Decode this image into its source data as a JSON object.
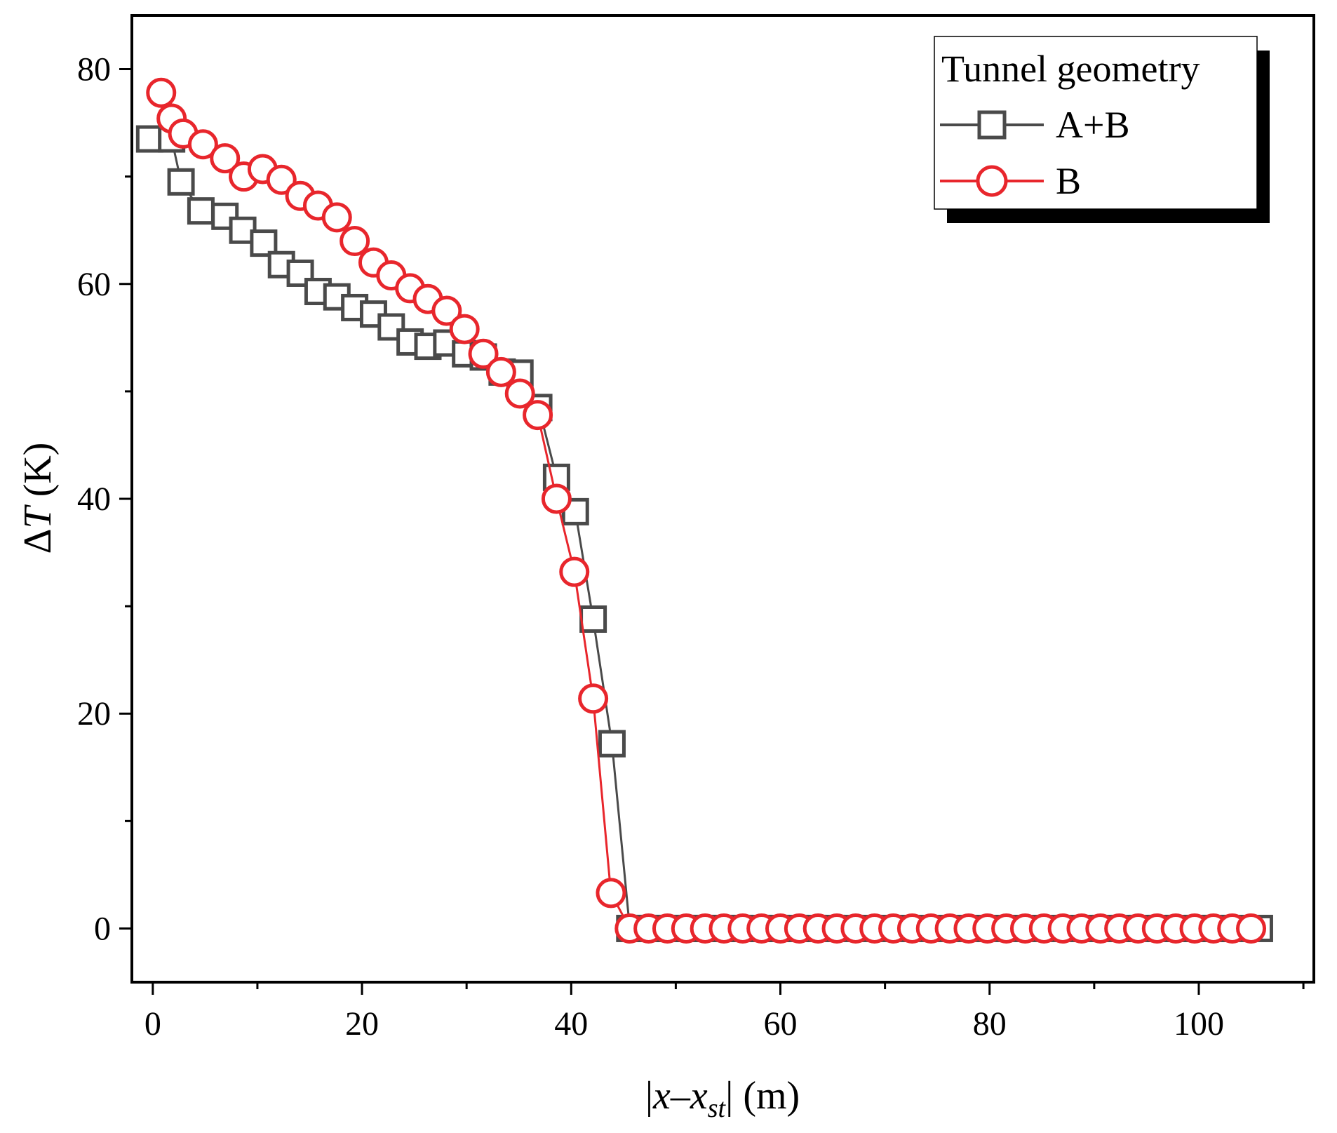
{
  "chart_data": {
    "type": "line",
    "title": "",
    "xlabel": "|x–x_st| (m)",
    "ylabel": "ΔT (K)",
    "xlim": [
      -2,
      111
    ],
    "ylim": [
      -5,
      85
    ],
    "xticks": [
      0,
      20,
      40,
      60,
      80,
      100
    ],
    "yticks": [
      0,
      20,
      40,
      60,
      80
    ],
    "xtick_labels": [
      "0",
      "20",
      "40",
      "60",
      "80",
      "100"
    ],
    "ytick_labels": [
      "0",
      "20",
      "40",
      "60",
      "80"
    ],
    "xlabel_parts": {
      "bar_left": "|",
      "x": "x",
      "dash": "–",
      "x2": "x",
      "sub": "st",
      "bar_right": "|",
      "unit": " (m)"
    },
    "ylabel_parts": {
      "delta": "Δ",
      "var": "T",
      "unit": " (K)"
    },
    "legend": {
      "title": "Tunnel geometry",
      "position": "top-right"
    },
    "series": [
      {
        "name": "A+B",
        "color": "#4a4a4a",
        "marker": "square",
        "x": [
          -0.3,
          1.8,
          2.7,
          4.6,
          6.9,
          8.6,
          10.6,
          12.3,
          14.1,
          15.8,
          17.6,
          19.3,
          21.1,
          22.8,
          24.6,
          26.3,
          28.1,
          29.9,
          31.6,
          33.4,
          35.1,
          36.9,
          38.6,
          40.4,
          42.1,
          43.9,
          45.6,
          47.4,
          49.1,
          50.9,
          52.6,
          54.4,
          56.1,
          57.9,
          59.6,
          61.4,
          63.1,
          64.9,
          66.6,
          68.4,
          70.1,
          71.9,
          73.6,
          75.4,
          77.1,
          78.9,
          80.6,
          82.4,
          84.1,
          85.9,
          87.6,
          89.4,
          91.1,
          92.9,
          94.6,
          96.4,
          98.1,
          99.9,
          101.6,
          103.4,
          105.8
        ],
        "y": [
          73.5,
          73.5,
          69.5,
          66.8,
          66.3,
          65.0,
          63.8,
          61.8,
          61.0,
          59.3,
          58.8,
          57.8,
          57.2,
          56.0,
          54.6,
          54.2,
          54.5,
          53.5,
          53.2,
          51.8,
          51.7,
          48.5,
          42.0,
          38.8,
          28.8,
          17.2,
          0,
          0,
          0,
          0,
          0,
          0,
          0,
          0,
          0,
          0,
          0,
          0,
          0,
          0,
          0,
          0,
          0,
          0,
          0,
          0,
          0,
          0,
          0,
          0,
          0,
          0,
          0,
          0,
          0,
          0,
          0,
          0,
          0,
          0,
          0
        ]
      },
      {
        "name": "B",
        "color": "#e8262c",
        "marker": "circle",
        "x": [
          0.8,
          1.8,
          2.9,
          4.8,
          6.9,
          8.7,
          10.5,
          12.3,
          14.1,
          15.8,
          17.6,
          19.3,
          21.1,
          22.8,
          24.6,
          26.3,
          28.1,
          29.8,
          31.6,
          33.3,
          35.1,
          36.8,
          38.6,
          40.3,
          42.1,
          43.8,
          45.6,
          47.4,
          49.2,
          51.0,
          52.8,
          54.6,
          56.4,
          58.2,
          60.0,
          61.8,
          63.6,
          65.4,
          67.2,
          69.0,
          70.8,
          72.6,
          74.4,
          76.2,
          78.0,
          79.8,
          81.6,
          83.4,
          85.2,
          87.0,
          88.8,
          90.6,
          92.4,
          94.2,
          96.0,
          97.8,
          99.6,
          101.4,
          103.2,
          105.0
        ],
        "y": [
          77.8,
          75.4,
          74.0,
          73.0,
          71.7,
          70.0,
          70.7,
          69.7,
          68.2,
          67.3,
          66.2,
          64.0,
          62.0,
          60.8,
          59.6,
          58.6,
          57.5,
          55.8,
          53.5,
          51.8,
          49.8,
          47.8,
          40.0,
          33.2,
          21.4,
          3.3,
          0,
          0,
          0,
          0,
          0,
          0,
          0,
          0,
          0,
          0,
          0,
          0,
          0,
          0,
          0,
          0,
          0,
          0,
          0,
          0,
          0,
          0,
          0,
          0,
          0,
          0,
          0,
          0,
          0,
          0,
          0,
          0,
          0,
          0
        ]
      }
    ]
  }
}
